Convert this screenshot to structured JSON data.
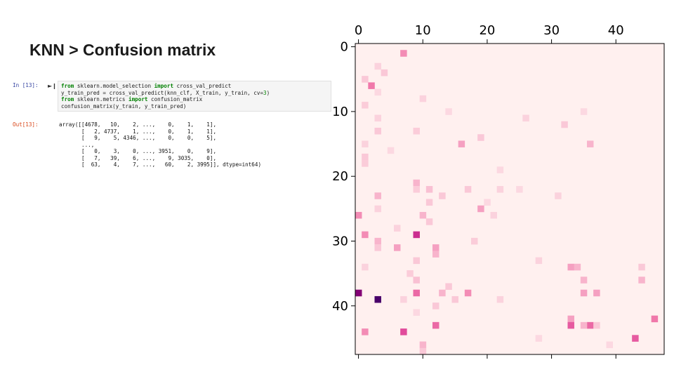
{
  "slide": {
    "title": "KNN > Confusion matrix"
  },
  "notebook": {
    "in_prompt": "In [13]:",
    "run_icon": "run-cell-icon",
    "code_lines": [
      [
        {
          "t": "from",
          "k": "kw"
        },
        {
          "t": " sklearn.model_selection "
        },
        {
          "t": "import",
          "k": "kw"
        },
        {
          "t": " cross_val_predict"
        }
      ],
      [
        {
          "t": "y_train_pred = cross_val_predict(knn_clf, X_train, y_train, cv="
        },
        {
          "t": "3",
          "k": "num"
        },
        {
          "t": ")"
        }
      ],
      [
        {
          "t": "from",
          "k": "kw"
        },
        {
          "t": " sklearn.metrics "
        },
        {
          "t": "import",
          "k": "kw"
        },
        {
          "t": " confusion_matrix"
        }
      ],
      [
        {
          "t": "confusion_matrix(y_train, y_train_pred)"
        }
      ]
    ],
    "out_prompt": "Out[13]:",
    "output_lines": [
      "array([[4678,   10,    2, ...,    0,    1,    1],",
      "       [   2, 4737,    1, ...,    0,    1,    1],",
      "       [   9,    5, 4346, ...,    0,    0,    5],",
      "       ...,",
      "       [   0,    3,    0, ..., 3951,    0,    9],",
      "       [   7,   39,    6, ...,    9, 3035,    0],",
      "       [  63,    4,    7, ...,   60,    2, 3995]], dtype=int64)"
    ]
  },
  "chart_data": {
    "type": "heatmap",
    "title": "",
    "xlabel": "",
    "ylabel": "",
    "x_ticks": [
      0,
      10,
      20,
      30,
      40
    ],
    "y_ticks": [
      0,
      10,
      20,
      30,
      40
    ],
    "x_tick_position": "top",
    "n_rows": 48,
    "n_cols": 48,
    "xlim": [
      -0.5,
      47.5
    ],
    "ylim": [
      47.5,
      -0.5
    ],
    "grid": false,
    "colormap": "RdPu",
    "diagonal_masked": true,
    "background_color": "#fff0ef",
    "note": "cells list [row, col, intensity 0..1] for visibly highlighted off-diagonal entries",
    "cells": [
      [
        1,
        7,
        0.35
      ],
      [
        3,
        3,
        0.15
      ],
      [
        4,
        4,
        0.2
      ],
      [
        5,
        1,
        0.2
      ],
      [
        6,
        2,
        0.4
      ],
      [
        7,
        3,
        0.12
      ],
      [
        8,
        10,
        0.15
      ],
      [
        9,
        1,
        0.18
      ],
      [
        10,
        14,
        0.12
      ],
      [
        10,
        35,
        0.12
      ],
      [
        11,
        3,
        0.15
      ],
      [
        11,
        26,
        0.15
      ],
      [
        12,
        32,
        0.2
      ],
      [
        13,
        3,
        0.2
      ],
      [
        13,
        9,
        0.18
      ],
      [
        14,
        19,
        0.2
      ],
      [
        15,
        1,
        0.15
      ],
      [
        15,
        16,
        0.3
      ],
      [
        15,
        36,
        0.25
      ],
      [
        16,
        5,
        0.12
      ],
      [
        17,
        1,
        0.2
      ],
      [
        18,
        1,
        0.18
      ],
      [
        19,
        22,
        0.12
      ],
      [
        21,
        9,
        0.25
      ],
      [
        22,
        9,
        0.18
      ],
      [
        22,
        11,
        0.22
      ],
      [
        22,
        17,
        0.2
      ],
      [
        22,
        22,
        0.15
      ],
      [
        22,
        25,
        0.12
      ],
      [
        23,
        3,
        0.25
      ],
      [
        23,
        13,
        0.2
      ],
      [
        23,
        31,
        0.15
      ],
      [
        24,
        11,
        0.2
      ],
      [
        24,
        20,
        0.12
      ],
      [
        25,
        3,
        0.15
      ],
      [
        25,
        19,
        0.3
      ],
      [
        26,
        0,
        0.35
      ],
      [
        26,
        10,
        0.25
      ],
      [
        26,
        21,
        0.15
      ],
      [
        27,
        11,
        0.2
      ],
      [
        28,
        6,
        0.15
      ],
      [
        29,
        1,
        0.35
      ],
      [
        29,
        9,
        0.65
      ],
      [
        30,
        3,
        0.25
      ],
      [
        30,
        18,
        0.18
      ],
      [
        31,
        3,
        0.2
      ],
      [
        31,
        6,
        0.3
      ],
      [
        31,
        12,
        0.3
      ],
      [
        32,
        12,
        0.25
      ],
      [
        33,
        9,
        0.2
      ],
      [
        33,
        28,
        0.15
      ],
      [
        34,
        1,
        0.15
      ],
      [
        34,
        33,
        0.3
      ],
      [
        34,
        34,
        0.25
      ],
      [
        34,
        44,
        0.2
      ],
      [
        35,
        8,
        0.18
      ],
      [
        36,
        9,
        0.22
      ],
      [
        36,
        35,
        0.25
      ],
      [
        36,
        44,
        0.25
      ],
      [
        37,
        14,
        0.2
      ],
      [
        38,
        0,
        0.85
      ],
      [
        38,
        9,
        0.45
      ],
      [
        38,
        13,
        0.25
      ],
      [
        38,
        17,
        0.35
      ],
      [
        38,
        35,
        0.3
      ],
      [
        38,
        37,
        0.3
      ],
      [
        39,
        3,
        1.0
      ],
      [
        39,
        7,
        0.15
      ],
      [
        39,
        15,
        0.2
      ],
      [
        39,
        22,
        0.15
      ],
      [
        40,
        12,
        0.2
      ],
      [
        41,
        9,
        0.12
      ],
      [
        42,
        33,
        0.3
      ],
      [
        42,
        46,
        0.4
      ],
      [
        43,
        12,
        0.45
      ],
      [
        43,
        33,
        0.5
      ],
      [
        43,
        36,
        0.45
      ],
      [
        43,
        37,
        0.2
      ],
      [
        43,
        35,
        0.25
      ],
      [
        44,
        1,
        0.35
      ],
      [
        44,
        7,
        0.55
      ],
      [
        45,
        43,
        0.5
      ],
      [
        46,
        10,
        0.25
      ],
      [
        47,
        10,
        0.2
      ],
      [
        45,
        28,
        0.12
      ],
      [
        46,
        39,
        0.12
      ]
    ]
  },
  "colors": {
    "keyword": "#008000",
    "in_prompt": "#303f9f",
    "out_prompt": "#d84315",
    "heatmap_background": "#fff0ef"
  }
}
